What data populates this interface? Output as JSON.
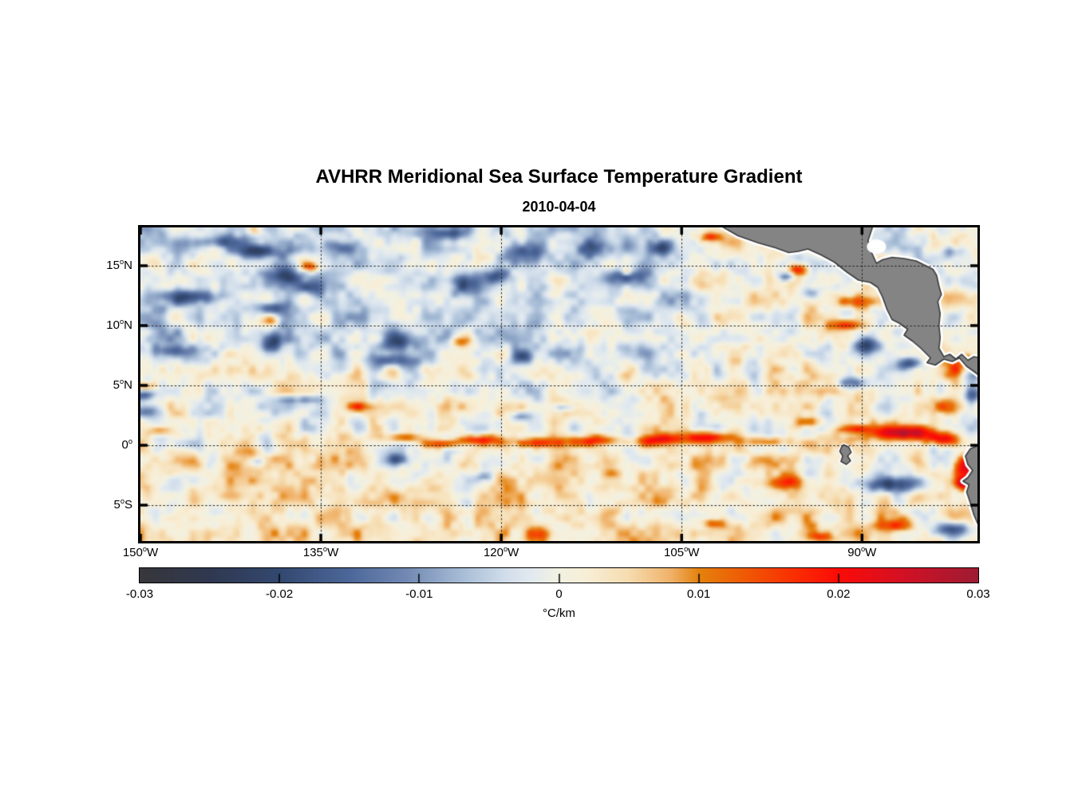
{
  "chart_data": {
    "type": "heatmap",
    "title": "AVHRR Meridional Sea Surface Temperature Gradient",
    "subtitle": "2010-04-04",
    "grid": "dotted",
    "lon_range_w": [
      150,
      80.4
    ],
    "lat_range": [
      18.2,
      -8.0
    ],
    "x_axis": {
      "ticks": [
        {
          "label": "150°W",
          "lon_w": 150
        },
        {
          "label": "135°W",
          "lon_w": 135
        },
        {
          "label": "120°W",
          "lon_w": 120
        },
        {
          "label": "105°W",
          "lon_w": 105
        },
        {
          "label": "90°W",
          "lon_w": 90
        }
      ]
    },
    "y_axis": {
      "ticks": [
        {
          "label": "15°N",
          "lat": 15
        },
        {
          "label": "10°N",
          "lat": 10
        },
        {
          "label": "5°N",
          "lat": 5
        },
        {
          "label": "0°",
          "lat": 0
        },
        {
          "label": "5°S",
          "lat": -5
        }
      ]
    },
    "colorbar": {
      "label": "°C/km",
      "min": -0.03,
      "max": 0.03,
      "ticks": [
        {
          "label": "-0.03",
          "value": -0.03
        },
        {
          "label": "-0.02",
          "value": -0.02
        },
        {
          "label": "-0.01",
          "value": -0.01
        },
        {
          "label": "0",
          "value": 0
        },
        {
          "label": "0.01",
          "value": 0.01
        },
        {
          "label": "0.02",
          "value": 0.02
        },
        {
          "label": "0.03",
          "value": 0.03
        }
      ]
    },
    "colormap": [
      [
        -0.03,
        "#37373b"
      ],
      [
        -0.025,
        "#2f3850"
      ],
      [
        -0.02,
        "#33486f"
      ],
      [
        -0.015,
        "#4c679a"
      ],
      [
        -0.011,
        "#7188b2"
      ],
      [
        -0.007,
        "#a6bcd6"
      ],
      [
        -0.004,
        "#cfdcea"
      ],
      [
        -0.002,
        "#e2eaf0"
      ],
      [
        0,
        "#f2f1e2"
      ],
      [
        0.002,
        "#f8eed6"
      ],
      [
        0.005,
        "#f6dcb0"
      ],
      [
        0.008,
        "#f0b269"
      ],
      [
        0.01,
        "#e4820e"
      ],
      [
        0.013,
        "#ee5d05"
      ],
      [
        0.017,
        "#fa2c02"
      ],
      [
        0.02,
        "#fb0b07"
      ],
      [
        0.025,
        "#cf1126"
      ],
      [
        0.03,
        "#9d1c33"
      ]
    ],
    "field": {
      "units": "degC_per_km",
      "noise": {
        "seed": 7,
        "octaves": [
          {
            "scale_deg": 1.5,
            "amp": 0.0062
          },
          {
            "scale_deg": 0.62,
            "amp": 0.003
          }
        ]
      },
      "bias": {
        "northwest_cool": -0.0042,
        "south_warm": 0.0024,
        "base": 0.0006
      },
      "features": [
        [
          143.1,
          17.0,
          1.5,
          0.5,
          -0.014
        ],
        [
          140.2,
          16.2,
          2.0,
          0.55,
          -0.017
        ],
        [
          133.5,
          16.5,
          1.4,
          0.6,
          -0.016
        ],
        [
          124.5,
          17.7,
          1.8,
          0.5,
          -0.015
        ],
        [
          137.9,
          14.2,
          1.7,
          0.75,
          -0.018
        ],
        [
          136.2,
          13.2,
          1.2,
          0.55,
          -0.015
        ],
        [
          145.3,
          12.4,
          2.2,
          0.6,
          -0.016
        ],
        [
          139.3,
          11.5,
          1.6,
          0.5,
          -0.014
        ],
        [
          139.1,
          8.7,
          1.0,
          0.85,
          -0.016
        ],
        [
          147.4,
          7.9,
          1.5,
          0.55,
          -0.015
        ],
        [
          128.5,
          8.8,
          1.5,
          0.6,
          -0.015
        ],
        [
          129.4,
          7.1,
          2.4,
          0.5,
          -0.013
        ],
        [
          123.0,
          13.4,
          1.5,
          0.9,
          -0.013
        ],
        [
          118.0,
          16.0,
          1.9,
          1.0,
          -0.017
        ],
        [
          112.6,
          16.5,
          1.6,
          0.8,
          -0.018
        ],
        [
          109.7,
          14.1,
          1.5,
          0.6,
          -0.016
        ],
        [
          106.9,
          16.5,
          1.0,
          0.6,
          -0.015
        ],
        [
          120.5,
          14.2,
          1.0,
          0.6,
          -0.015
        ],
        [
          96.4,
          14.1,
          0.7,
          0.4,
          -0.016
        ],
        [
          118.3,
          7.5,
          0.8,
          0.5,
          -0.015
        ],
        [
          94.4,
          12.7,
          0.8,
          0.5,
          -0.012
        ],
        [
          86.0,
          10.7,
          0.95,
          0.5,
          -0.019
        ],
        [
          89.7,
          8.4,
          1.2,
          0.7,
          -0.02
        ],
        [
          86.3,
          6.9,
          1.1,
          0.5,
          -0.018
        ],
        [
          91.0,
          5.3,
          1.1,
          0.55,
          -0.016
        ],
        [
          81.1,
          5.9,
          0.6,
          0.5,
          -0.014
        ],
        [
          149.3,
          2.9,
          1.1,
          0.6,
          -0.015
        ],
        [
          149.6,
          4.3,
          0.8,
          0.4,
          -0.013
        ],
        [
          136.8,
          3.9,
          1.8,
          0.35,
          -0.012
        ],
        [
          118.5,
          2.5,
          0.9,
          0.4,
          -0.013
        ],
        [
          114.8,
          3.2,
          0.9,
          0.3,
          -0.011
        ],
        [
          128.7,
          -1.1,
          1.2,
          0.5,
          -0.015
        ],
        [
          140.4,
          -1.3,
          0.7,
          0.35,
          -0.01
        ],
        [
          121.5,
          -2.5,
          0.7,
          0.35,
          -0.01
        ],
        [
          90.8,
          1.05,
          1.2,
          0.3,
          -0.013
        ],
        [
          88.0,
          -3.2,
          2.6,
          0.65,
          -0.019
        ],
        [
          82.8,
          -6.9,
          1.6,
          0.6,
          -0.018
        ],
        [
          80.9,
          4.2,
          0.9,
          0.6,
          -0.012
        ],
        [
          82.7,
          16.2,
          0.9,
          0.5,
          -0.012
        ],
        [
          135.9,
          14.9,
          0.9,
          0.45,
          0.017
        ],
        [
          139.2,
          10.5,
          0.8,
          0.5,
          0.013
        ],
        [
          123.6,
          8.7,
          0.9,
          0.5,
          0.012
        ],
        [
          140.5,
          17.9,
          0.7,
          0.4,
          0.012
        ],
        [
          109.7,
          14.5,
          0.45,
          0.3,
          0.013
        ],
        [
          102.7,
          17.4,
          0.9,
          0.4,
          0.016
        ],
        [
          95.5,
          14.7,
          0.8,
          0.5,
          0.021
        ],
        [
          91.1,
          12.0,
          1.7,
          0.5,
          0.013
        ],
        [
          85.7,
          11.6,
          0.45,
          0.3,
          0.021
        ],
        [
          91.5,
          10.1,
          1.6,
          0.45,
          0.016
        ],
        [
          82.5,
          6.4,
          0.9,
          0.8,
          0.015
        ],
        [
          81.6,
          7.3,
          0.5,
          0.4,
          0.012
        ],
        [
          149.6,
          5.0,
          0.7,
          0.35,
          0.015
        ],
        [
          148.4,
          1.3,
          1.0,
          0.4,
          0.014
        ],
        [
          131.9,
          3.3,
          0.8,
          0.35,
          0.014
        ],
        [
          128.2,
          0.7,
          1.6,
          0.4,
          0.014
        ],
        [
          125.0,
          0.2,
          1.4,
          0.35,
          0.013
        ],
        [
          122.2,
          0.55,
          1.9,
          0.4,
          0.016
        ],
        [
          117.1,
          0.3,
          2.6,
          0.4,
          0.014
        ],
        [
          112.0,
          0.45,
          2.2,
          0.42,
          0.015
        ],
        [
          107.0,
          0.55,
          1.8,
          0.45,
          0.016
        ],
        [
          103.3,
          0.75,
          2.2,
          0.5,
          0.021
        ],
        [
          98.0,
          0.4,
          2.0,
          0.4,
          0.015
        ],
        [
          94.8,
          2.0,
          1.2,
          0.5,
          0.014
        ],
        [
          91.0,
          1.3,
          1.5,
          0.5,
          0.018
        ],
        [
          86.6,
          1.1,
          2.8,
          0.6,
          0.026
        ],
        [
          83.5,
          0.6,
          1.4,
          0.5,
          0.02
        ],
        [
          83.0,
          3.3,
          1.1,
          0.6,
          0.014
        ],
        [
          81.7,
          -1.8,
          0.8,
          1.1,
          0.024
        ],
        [
          81.9,
          -3.1,
          0.7,
          0.5,
          0.018
        ],
        [
          97.0,
          -3.0,
          1.9,
          0.6,
          0.013
        ],
        [
          102.6,
          -6.4,
          1.0,
          0.4,
          0.012
        ],
        [
          87.3,
          -6.6,
          1.5,
          0.5,
          0.013
        ],
        [
          93.6,
          -7.5,
          0.9,
          0.4,
          0.012
        ],
        [
          117.1,
          -7.3,
          1.2,
          0.6,
          0.013
        ]
      ]
    },
    "land": {
      "color": "#848484",
      "outline": "#3c3c3c",
      "coast_halo": "#ffffff",
      "polygons": {
        "central_america": [
          [
            101.7,
            18.3
          ],
          [
            100.3,
            17.5
          ],
          [
            98.6,
            16.9
          ],
          [
            97.2,
            16.5
          ],
          [
            96.1,
            16.1
          ],
          [
            95.3,
            16.2
          ],
          [
            94.5,
            16.4
          ],
          [
            93.4,
            15.9
          ],
          [
            92.3,
            15.3
          ],
          [
            91.3,
            14.5
          ],
          [
            90.3,
            13.8
          ],
          [
            89.3,
            13.6
          ],
          [
            88.7,
            13.2
          ],
          [
            88.3,
            12.4
          ],
          [
            87.9,
            11.3
          ],
          [
            87.5,
            10.5
          ],
          [
            86.9,
            10.2
          ],
          [
            86.2,
            9.7
          ],
          [
            86.5,
            9.2
          ],
          [
            85.8,
            8.7
          ],
          [
            85.1,
            8.1
          ],
          [
            84.3,
            7.3
          ],
          [
            84.6,
            6.9
          ],
          [
            83.9,
            6.7
          ],
          [
            83.2,
            7.2
          ],
          [
            82.5,
            7.0
          ],
          [
            81.9,
            7.3
          ],
          [
            81.3,
            6.6
          ],
          [
            80.6,
            6.1
          ],
          [
            80.1,
            5.7
          ],
          [
            80.1,
            7.3
          ],
          [
            80.7,
            7.4
          ],
          [
            81.2,
            7.1
          ],
          [
            81.7,
            7.6
          ],
          [
            82.2,
            7.2
          ],
          [
            82.7,
            7.6
          ],
          [
            83.2,
            7.4
          ],
          [
            83.6,
            8.1
          ],
          [
            83.5,
            9.0
          ],
          [
            83.6,
            10.0
          ],
          [
            83.5,
            11.0
          ],
          [
            83.7,
            12.0
          ],
          [
            83.4,
            12.6
          ],
          [
            83.6,
            13.3
          ],
          [
            83.8,
            14.2
          ],
          [
            84.1,
            14.7
          ],
          [
            84.7,
            15.0
          ],
          [
            85.5,
            15.4
          ],
          [
            86.5,
            15.6
          ],
          [
            87.5,
            15.7
          ],
          [
            88.3,
            15.5
          ],
          [
            88.8,
            15.2
          ],
          [
            89.2,
            16.1
          ],
          [
            89.5,
            17.1
          ],
          [
            89.1,
            18.3
          ]
        ],
        "south_america": [
          [
            80.1,
            0.1
          ],
          [
            81.0,
            -0.3
          ],
          [
            81.4,
            -0.9
          ],
          [
            81.2,
            -1.6
          ],
          [
            80.8,
            -2.1
          ],
          [
            81.2,
            -2.7
          ],
          [
            81.6,
            -3.0
          ],
          [
            81.1,
            -3.3
          ],
          [
            81.3,
            -3.9
          ],
          [
            81.0,
            -4.8
          ],
          [
            80.7,
            -5.8
          ],
          [
            80.4,
            -6.5
          ],
          [
            80.1,
            -6.9
          ]
        ],
        "galapagos": [
          [
            91.55,
            0.05
          ],
          [
            91.1,
            -0.15
          ],
          [
            90.9,
            -0.6
          ],
          [
            91.2,
            -0.9
          ],
          [
            90.95,
            -1.3
          ],
          [
            91.3,
            -1.6
          ],
          [
            91.75,
            -1.35
          ],
          [
            91.6,
            -0.9
          ],
          [
            91.85,
            -0.5
          ],
          [
            91.7,
            -0.15
          ]
        ]
      },
      "coast_gaps": [
        {
          "lon_w": 88.8,
          "lat": 16.6,
          "rx_deg": 0.8,
          "ry_deg": 0.6
        }
      ]
    }
  }
}
